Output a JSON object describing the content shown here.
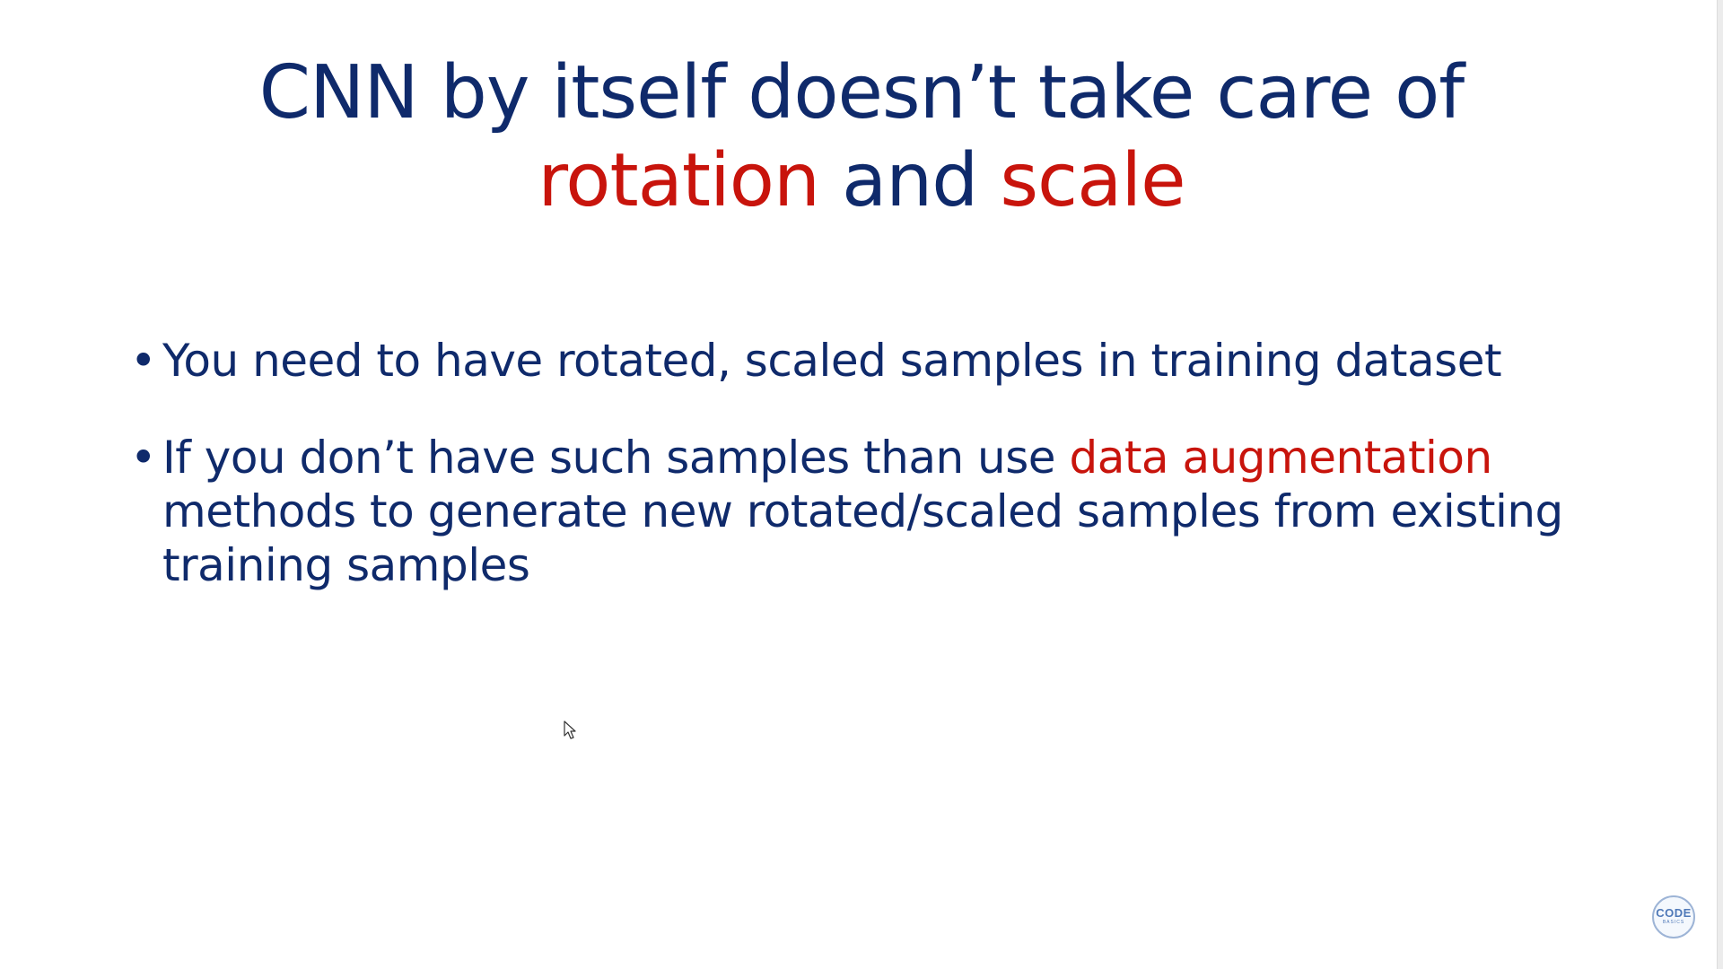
{
  "title": {
    "line1": "CNN by itself doesn’t take care of",
    "line2_part1": "rotation",
    "line2_part2": " and ",
    "line2_part3": "scale"
  },
  "bullets": [
    {
      "marker": "•",
      "text": "You need to have rotated, scaled samples in training dataset"
    },
    {
      "marker": "•",
      "text_before": "If you don’t have such samples than use ",
      "highlight": "data augmentation",
      "text_after": " methods to generate new rotated/scaled samples from existing training samples"
    }
  ],
  "logo": {
    "main": "CODE",
    "sub": "BASICS"
  },
  "colors": {
    "primary_text": "#0f2a6b",
    "accent": "#c8140c",
    "background": "#ffffff"
  },
  "icons": {
    "cursor": "mouse-pointer-icon",
    "logo": "codebasics-logo-icon"
  }
}
